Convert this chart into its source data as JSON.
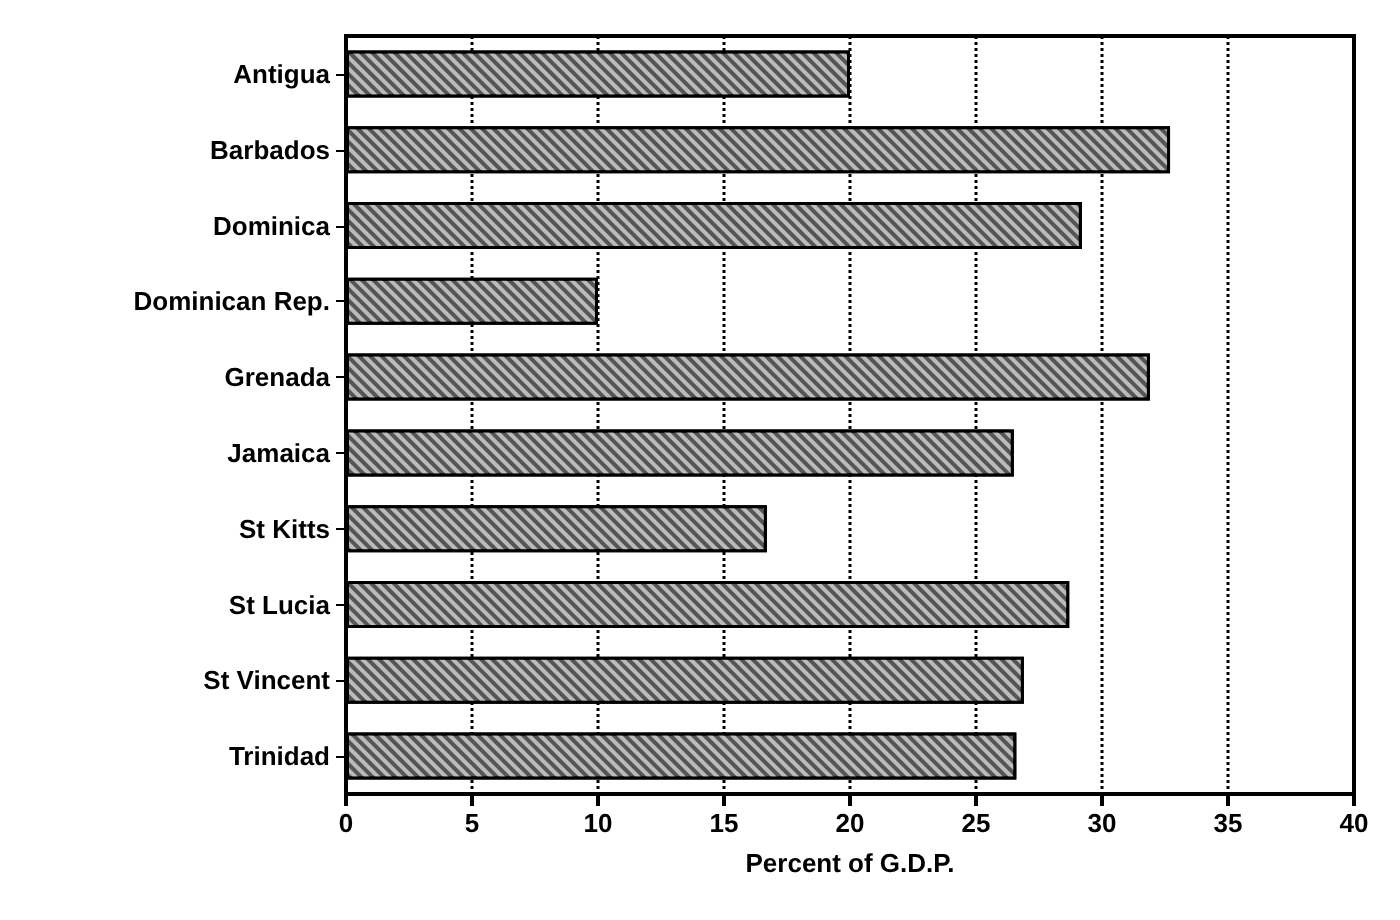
{
  "chart_data": {
    "type": "bar",
    "orientation": "horizontal",
    "xlabel": "Percent of G.D.P.",
    "categories": [
      "Antigua",
      "Barbados",
      "Dominica",
      "Dominican Rep.",
      "Grenada",
      "Jamaica",
      "St Kitts",
      "St Lucia",
      "St Vincent",
      "Trinidad"
    ],
    "values": [
      20.0,
      32.7,
      29.2,
      10.0,
      31.9,
      26.5,
      16.7,
      28.7,
      26.9,
      26.6
    ],
    "color": "#555555",
    "xlim": [
      0,
      40
    ],
    "xticks": [
      0,
      5,
      10,
      15,
      20,
      25,
      30,
      35,
      40
    ],
    "grid": "x"
  }
}
